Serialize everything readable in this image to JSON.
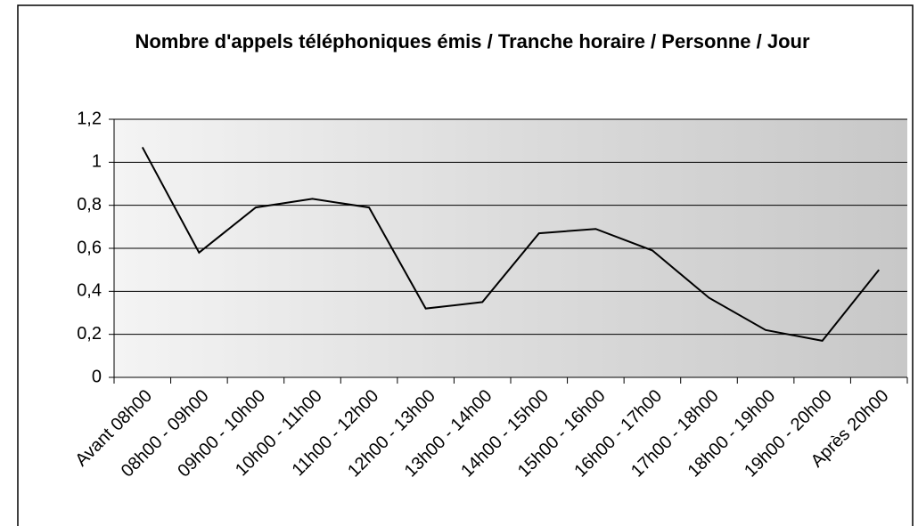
{
  "chart_data": {
    "type": "line",
    "title": "Nombre d'appels téléphoniques émis / Tranche horaire / Personne / Jour",
    "categories": [
      "Avant 08h00",
      "08h00 - 09h00",
      "09h00 - 10h00",
      "10h00 - 11h00",
      "11h00 - 12h00",
      "12h00 - 13h00",
      "13h00 - 14h00",
      "14h00 - 15h00",
      "15h00 - 16h00",
      "16h00 - 17h00",
      "17h00 - 18h00",
      "18h00 - 19h00",
      "19h00 - 20h00",
      "Après 20h00"
    ],
    "values": [
      1.07,
      0.58,
      0.79,
      0.83,
      0.79,
      0.32,
      0.35,
      0.67,
      0.69,
      0.59,
      0.37,
      0.22,
      0.17,
      0.5
    ],
    "color": "#000000",
    "ylim": [
      0,
      1.2
    ],
    "yticks": [
      0,
      {
        "value": 0.2,
        "label": "0,2"
      },
      {
        "value": 0.4,
        "label": "0,4"
      },
      {
        "value": 0.6,
        "label": "0,6"
      },
      {
        "value": 0.8,
        "label": "0,8"
      },
      1,
      {
        "value": 1.2,
        "label": "1,2"
      }
    ],
    "grid": true
  }
}
